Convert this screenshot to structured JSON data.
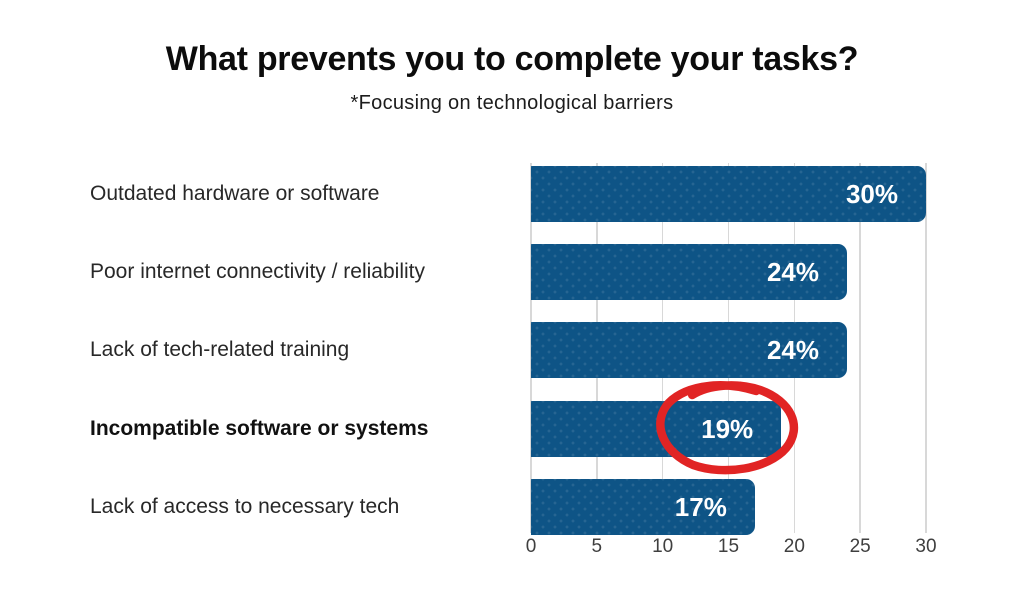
{
  "title": "What prevents you to complete your tasks?",
  "subtitle": "*Focusing on technological barriers",
  "colors": {
    "bar": "#0E5486",
    "value_label": "#FFFFFF",
    "gridline": "#D8D8D8",
    "category_label": "#282828",
    "axis_tick": "#3F3F3F",
    "highlight_circle": "#E12424",
    "background": "#FFFFFF"
  },
  "chart_data": {
    "type": "bar",
    "orientation": "horizontal",
    "title": "What prevents you to complete your tasks?",
    "subtitle": "*Focusing on technological barriers",
    "categories": [
      "Outdated hardware or software",
      "Poor internet connectivity / reliability",
      "Lack of tech-related training",
      "Incompatible software or systems",
      "Lack of access to necessary tech"
    ],
    "values": [
      30,
      24,
      24,
      19,
      17
    ],
    "value_labels": [
      "30%",
      "24%",
      "24%",
      "19%",
      "17%"
    ],
    "xlabel": "",
    "ylabel": "",
    "xlim": [
      0,
      30
    ],
    "xticks": [
      0,
      5,
      10,
      15,
      20,
      25,
      30
    ],
    "grid": "vertical-only",
    "legend": "none",
    "bold_category_index": 3,
    "annotation": {
      "type": "hand-drawn-circle",
      "target_index": 3,
      "target_label": "19%",
      "color": "#E12424"
    }
  }
}
